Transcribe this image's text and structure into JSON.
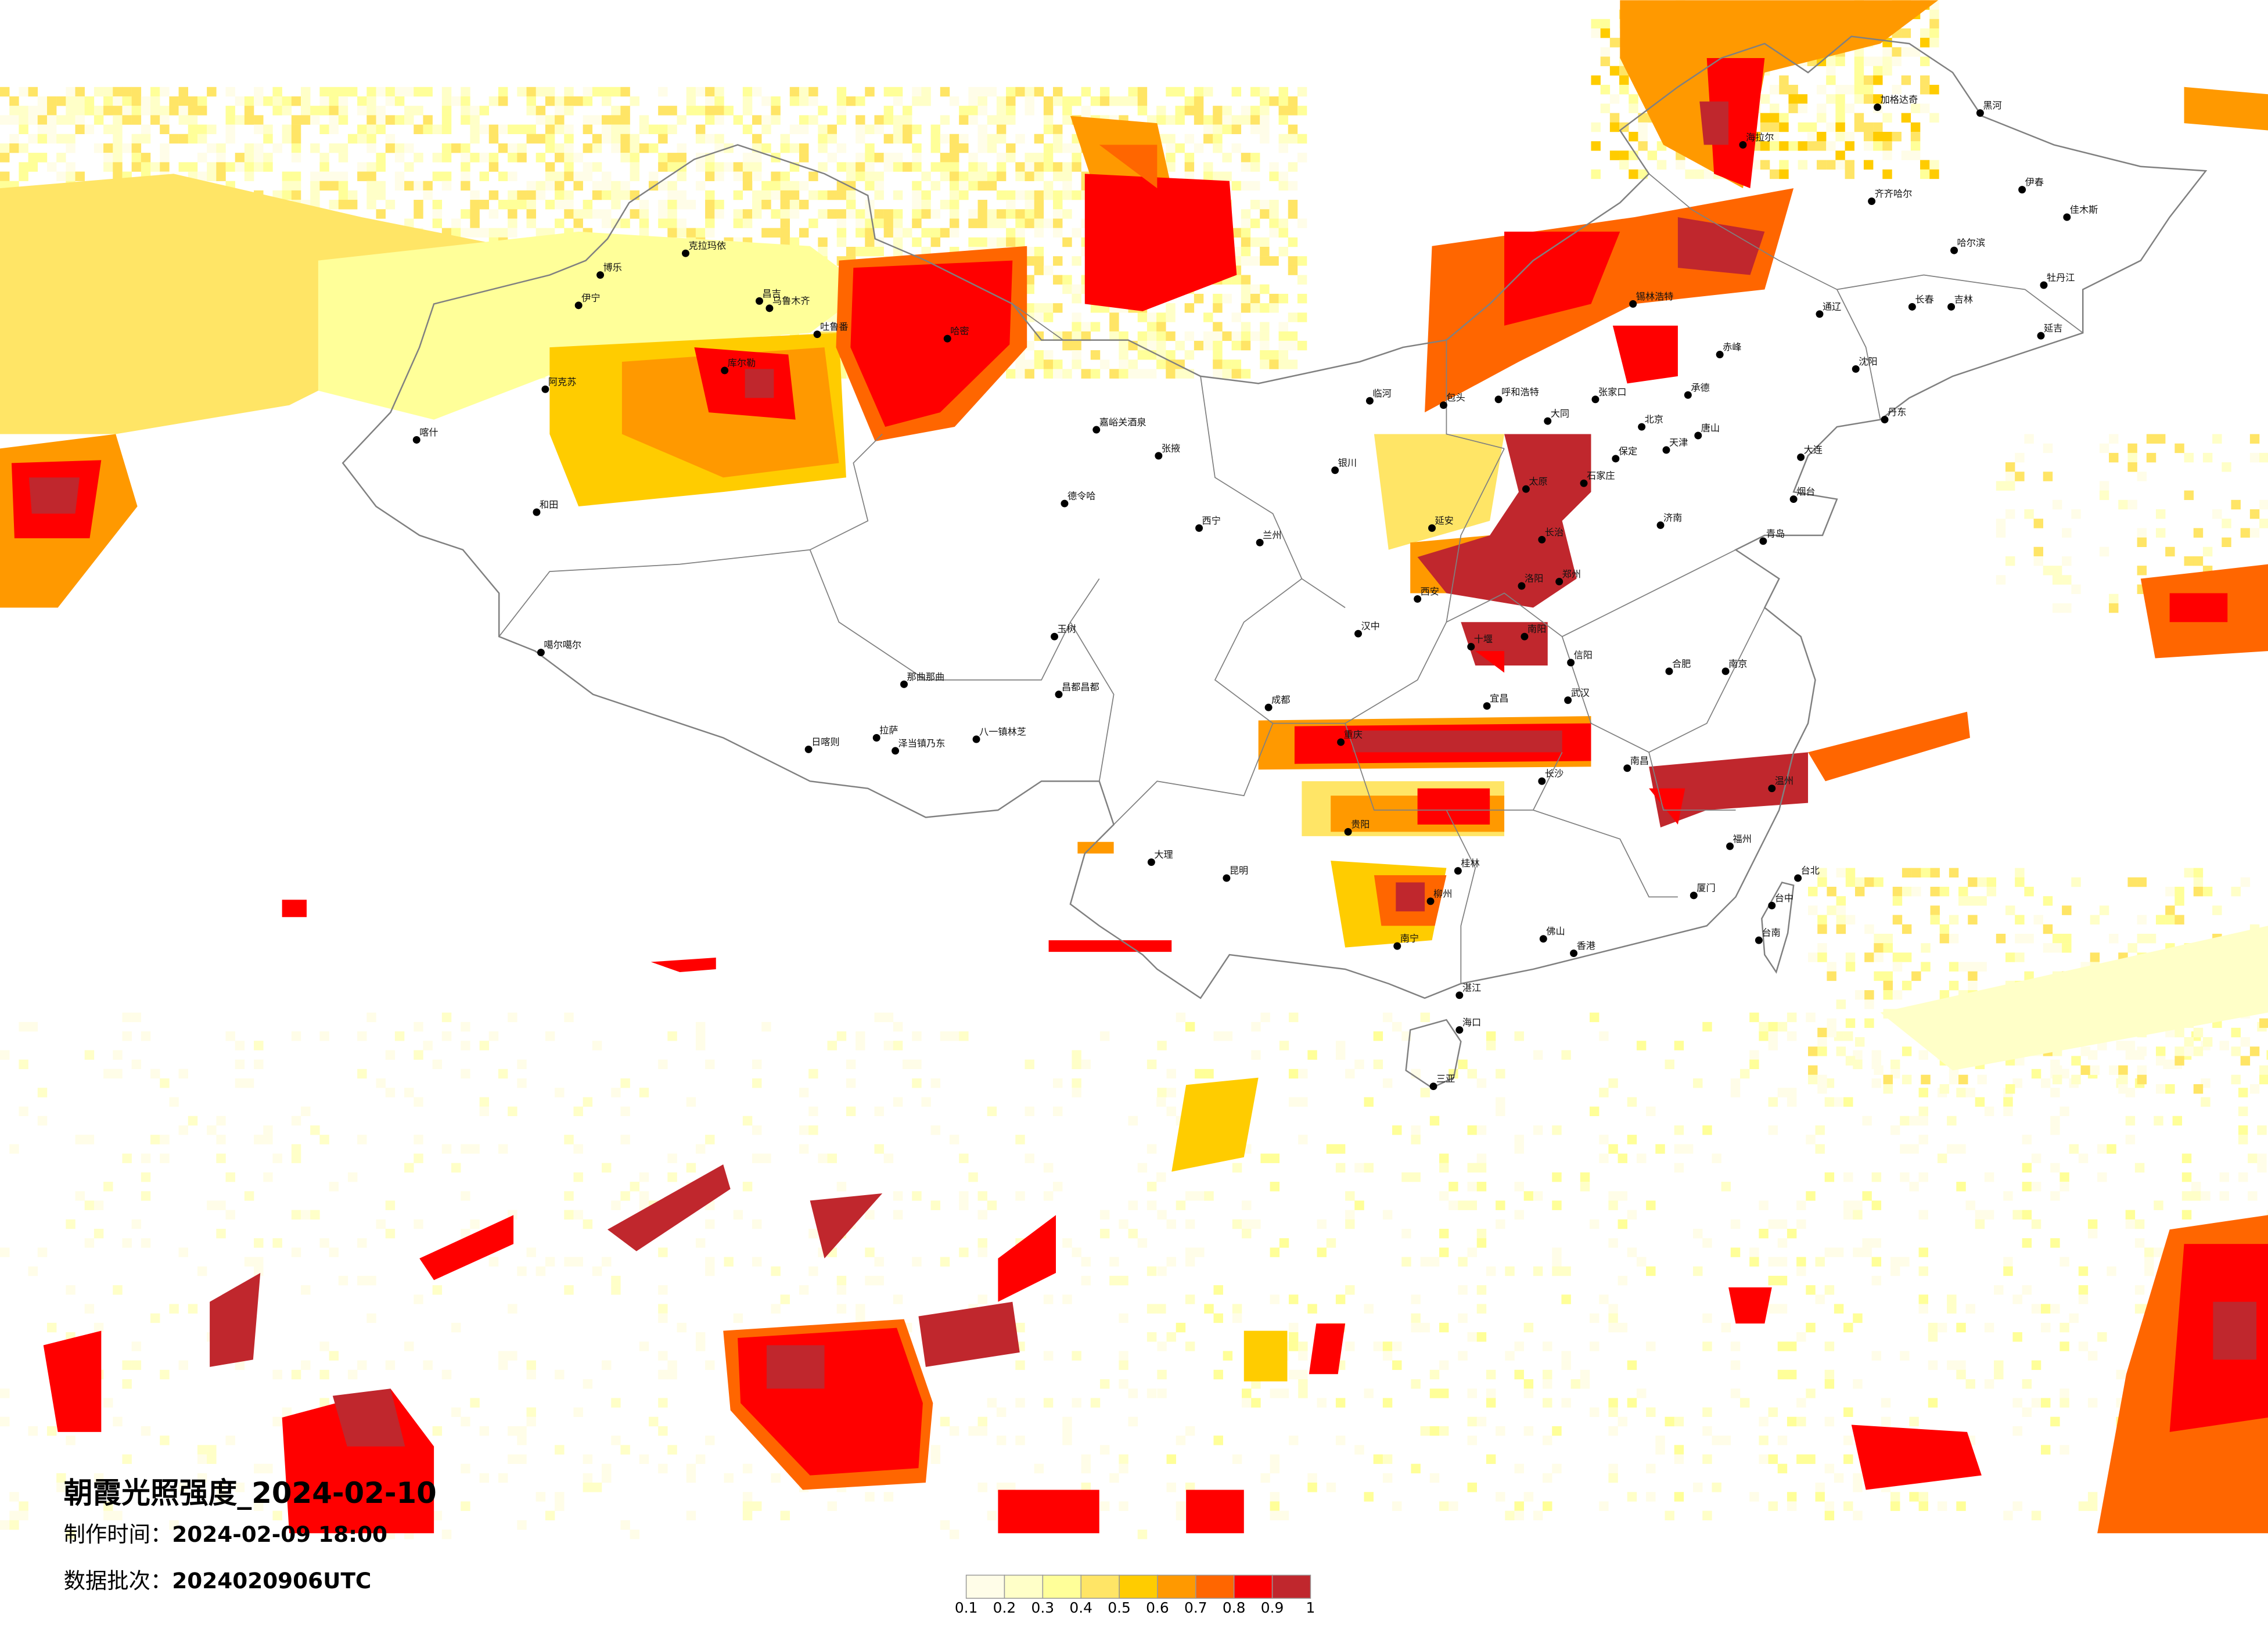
{
  "title": "朝霞光照强度_2024-02-10",
  "production_time": {
    "label": "制作时间：",
    "value": "2024-02-09 18:00"
  },
  "data_batch": {
    "label": "数据批次：",
    "value": "2024020906UTC"
  },
  "legend": {
    "bins": [
      {
        "label": "0.1",
        "color": "#fffde8"
      },
      {
        "label": "0.2",
        "color": "#ffffc8"
      },
      {
        "label": "0.3",
        "color": "#ffff99"
      },
      {
        "label": "0.4",
        "color": "#ffe566"
      },
      {
        "label": "0.5",
        "color": "#ffcc00"
      },
      {
        "label": "0.6",
        "color": "#ff9900"
      },
      {
        "label": "0.7",
        "color": "#ff6600"
      },
      {
        "label": "0.8",
        "color": "#ff0000"
      },
      {
        "label": "0.9",
        "color": "#c0272d"
      }
    ],
    "end_label": "1"
  },
  "map": {
    "border_color": "#808080",
    "city_marker_color": "#000000"
  },
  "cities": [
    "乌鲁木齐",
    "昌吉",
    "博乐",
    "伊宁",
    "克拉玛依",
    "吐鲁番",
    "哈密",
    "库尔勒",
    "阿克苏",
    "喀什",
    "和田",
    "噶尔噶尔",
    "那曲那曲",
    "拉萨",
    "日喀则",
    "泽当镇乃东",
    "八一镇林芝",
    "昌都昌都",
    "玉树",
    "德令哈",
    "嘉峪关酒泉",
    "张掖",
    "临河",
    "包头",
    "呼和浩特",
    "张家口",
    "承德",
    "北京",
    "天津",
    "唐山",
    "石家庄",
    "太原",
    "济南",
    "郑州",
    "西安",
    "兰州",
    "西宁",
    "银川",
    "成都",
    "重庆",
    "武汉",
    "汉中",
    "洛阳",
    "长治",
    "延安",
    "十堰",
    "南阳",
    "信阳",
    "合肥",
    "宜昌",
    "保定",
    "大同",
    "南京",
    "长沙",
    "贵阳",
    "昆明",
    "南宁",
    "佛山",
    "香港",
    "福州",
    "厦门",
    "南昌",
    "温州",
    "海口",
    "三亚",
    "台北",
    "台中",
    "台南",
    "桂林",
    "柳州",
    "大理",
    "湛江",
    "哈尔滨",
    "长春",
    "吉林",
    "沈阳",
    "大连",
    "齐齐哈尔",
    "海拉尔",
    "黑河",
    "加格达奇",
    "伊春",
    "佳木斯",
    "牡丹江",
    "延吉",
    "锡林浩特",
    "赤峰",
    "青岛",
    "烟台",
    "丹东",
    "通辽"
  ]
}
